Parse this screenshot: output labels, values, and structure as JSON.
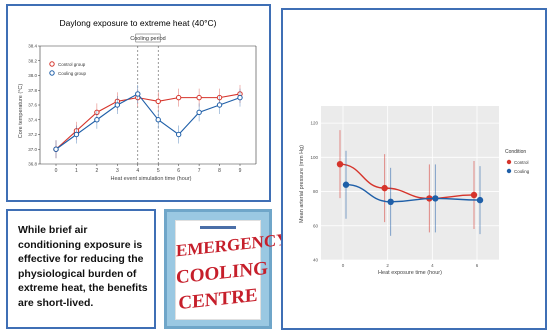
{
  "chart_data": [
    {
      "type": "line",
      "title": "Daylong exposure to extreme heat (40°C)",
      "xlabel": "Heat event simulation time (hour)",
      "ylabel": "Core temperature (°C)",
      "x": [
        0,
        1,
        2,
        3,
        4,
        5,
        6,
        7,
        8,
        9
      ],
      "x_ticks": [
        "0",
        "1",
        "2",
        "3",
        "4",
        "5",
        "6",
        "7",
        "8",
        "9"
      ],
      "ylim": [
        36.8,
        38.4
      ],
      "y_ticks": [
        "36.8",
        "37.0",
        "37.2",
        "37.4",
        "37.6",
        "37.8",
        "38.0",
        "38.2",
        "38.4"
      ],
      "annotation": "Cooling period",
      "annotation_range": [
        4,
        5
      ],
      "legend_position": "top-left",
      "grid": false,
      "series": [
        {
          "name": "Control group",
          "color": "#d6342b",
          "values": [
            37.0,
            37.25,
            37.5,
            37.65,
            37.7,
            37.65,
            37.7,
            37.7,
            37.7,
            37.75
          ]
        },
        {
          "name": "Cooling group",
          "color": "#1f5fa8",
          "values": [
            37.0,
            37.2,
            37.4,
            37.6,
            37.75,
            37.4,
            37.2,
            37.5,
            37.6,
            37.7
          ]
        }
      ]
    },
    {
      "type": "line",
      "xlabel": "Heat exposure time (hour)",
      "ylabel": "Mean arterial pressure (mm Hg)",
      "x": [
        0,
        2,
        4,
        6
      ],
      "x_ticks": [
        "0",
        "2",
        "4",
        "6"
      ],
      "ylim": [
        40,
        130
      ],
      "y_ticks": [
        "40",
        "60",
        "80",
        "100",
        "120"
      ],
      "legend_title": "Condition",
      "legend_position": "right",
      "grid": true,
      "series": [
        {
          "name": "Control",
          "color": "#d6342b",
          "values": [
            96,
            82,
            76,
            78
          ]
        },
        {
          "name": "Cooling",
          "color": "#1f5fa8",
          "values": [
            84,
            74,
            76,
            75
          ]
        }
      ]
    }
  ],
  "text_panel": {
    "lines": [
      "While brief air",
      "conditioning exposure is",
      "effective for reducing the",
      "physiological burden of",
      "extreme heat, the benefits",
      "are short-lived."
    ]
  },
  "sign": {
    "lines": [
      "EMERGENCY",
      "COOLING",
      "CENTRE"
    ]
  },
  "colors": {
    "panel_border": "#3f6fb5",
    "sign_text": "#c61f2b",
    "sign_bg": "#9ac8e2"
  }
}
